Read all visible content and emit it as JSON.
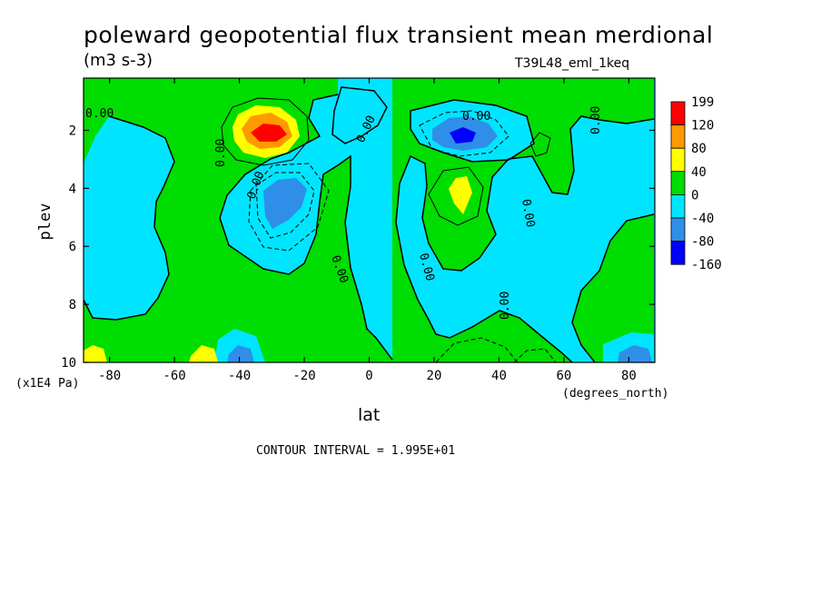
{
  "chart_data": {
    "type": "heatmap",
    "subtype": "filled-contour",
    "title": "poleward geopotential flux transient mean merdional",
    "units": "(m3 s-3)",
    "run_label": "T39L48_eml_1keq",
    "xlabel": "lat",
    "x_units": "(degrees_north)",
    "ylabel": "plev",
    "y_scale_note": "(x1E4 Pa)",
    "x_ticks": [
      -80,
      -60,
      -40,
      -20,
      0,
      20,
      40,
      60,
      80
    ],
    "y_ticks": [
      2,
      4,
      6,
      8,
      10
    ],
    "xlim": [
      -88,
      88
    ],
    "ylim": [
      10,
      0.2
    ],
    "contour_interval_text": "CONTOUR INTERVAL = 1.995E+01",
    "contour_label": "0.00",
    "colorbar": {
      "labels": [
        "199",
        "120",
        "80",
        "40",
        "0",
        "-40",
        "-80",
        "-160"
      ],
      "colors": [
        "#ff0000",
        "#ff9900",
        "#ffff00",
        "#00dd00",
        "#00e5ff",
        "#2f8fe8",
        "#0000ff"
      ]
    },
    "features": [
      {
        "lat": -32,
        "plev": 2.0,
        "sign": "positive",
        "peak_level": "199"
      },
      {
        "lat": -28,
        "plev": 4.3,
        "sign": "negative",
        "peak_level": "-80"
      },
      {
        "lat": 30,
        "plev": 2.1,
        "sign": "negative",
        "peak_level": "-80"
      },
      {
        "lat": 28,
        "plev": 4.1,
        "sign": "positive",
        "peak_level": "40"
      },
      {
        "lat": -85,
        "plev": 9.8,
        "sign": "positive",
        "peak_level": "40"
      },
      {
        "lat": -52,
        "plev": 9.8,
        "sign": "positive",
        "peak_level": "40"
      },
      {
        "lat": -36,
        "plev": 9.9,
        "sign": "negative",
        "peak_level": "-80"
      },
      {
        "lat": 83,
        "plev": 9.8,
        "sign": "negative",
        "peak_level": "-80"
      }
    ]
  }
}
